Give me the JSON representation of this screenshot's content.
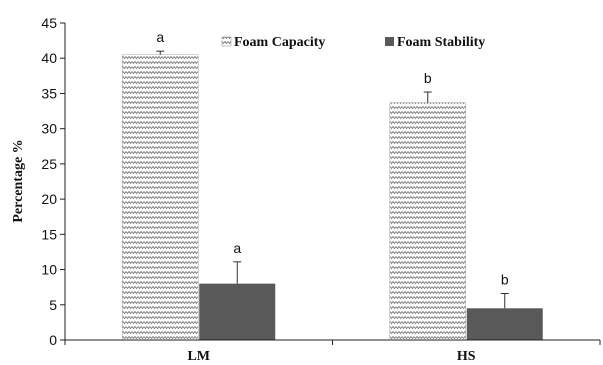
{
  "chart_data": {
    "type": "bar",
    "categories": [
      "LM",
      "HS"
    ],
    "series": [
      {
        "name": "Foam Capacity",
        "values": [
          40.5,
          33.7
        ],
        "errors": [
          0.5,
          1.5
        ],
        "significance": [
          "a",
          "b"
        ],
        "color": "#d9d9d9",
        "pattern": "zigzag"
      },
      {
        "name": "Foam Stability",
        "values": [
          8.0,
          4.5
        ],
        "errors": [
          3.1,
          2.1
        ],
        "significance": [
          "a",
          "b"
        ],
        "color": "#595959",
        "pattern": "solid"
      }
    ],
    "ylabel": "Percentage %",
    "xlabel": "",
    "ylim": [
      0,
      45
    ],
    "yticks": [
      "0",
      "5",
      "10",
      "15",
      "20",
      "25",
      "30",
      "35",
      "40",
      "45"
    ],
    "grid": false,
    "legend_position": "top-center"
  }
}
